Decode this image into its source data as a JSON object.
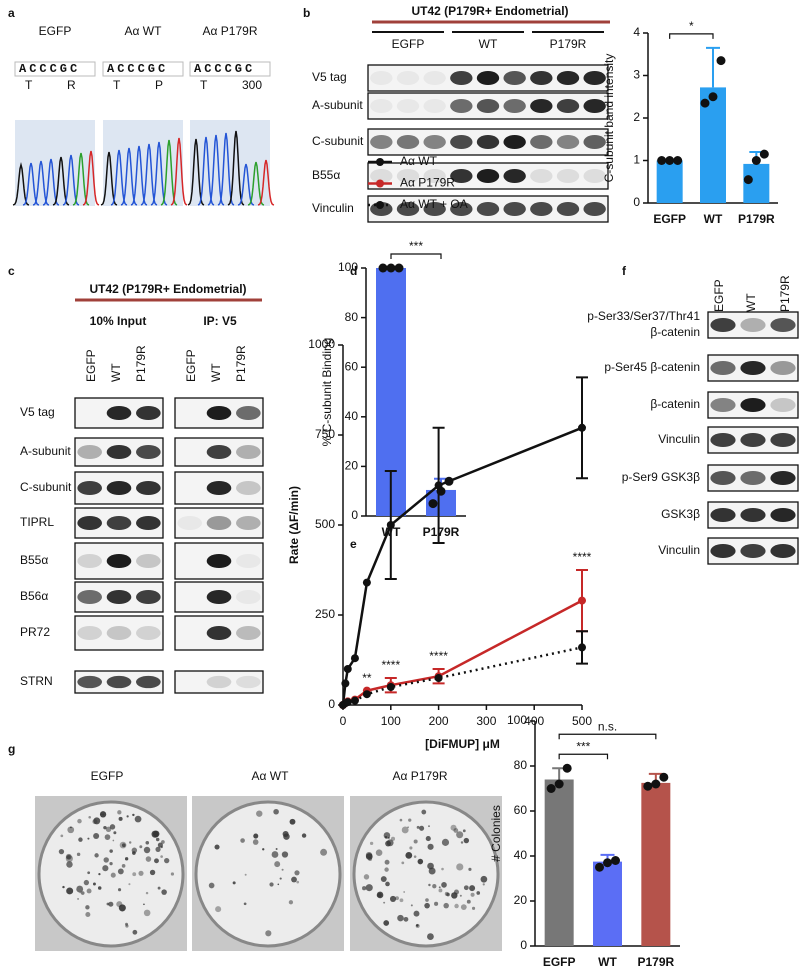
{
  "figure": {
    "panel_labels": [
      "a",
      "b",
      "c",
      "d",
      "e",
      "f",
      "g"
    ],
    "a": {
      "samples": [
        {
          "label": "EGFP",
          "sequence": "ACCCGC",
          "codons": [
            "T",
            "R"
          ]
        },
        {
          "label": "Aα WT",
          "sequence": "ACCCGC",
          "codons": [
            "T",
            "P"
          ]
        },
        {
          "label": "Aα P179R",
          "sequence": "ACCCGC",
          "codons": [
            "T",
            "300"
          ]
        }
      ]
    },
    "b": {
      "title": "UT42 (P179R+ Endometrial)",
      "groups": [
        "EGFP",
        "WT",
        "P179R"
      ],
      "rows": [
        "V5 tag",
        "A-subunit",
        "C-subunit",
        "B55α",
        "Vinculin"
      ]
    },
    "c": {
      "title": "UT42 (P179R+ Endometrial)",
      "sections": [
        "10% Input",
        "IP: V5"
      ],
      "lanes": [
        "EGFP",
        "WT",
        "P179R"
      ],
      "rows": [
        "V5 tag",
        "A-subunit",
        "C-subunit",
        "TIPRL",
        "B55α",
        "B56α",
        "PR72",
        "STRN"
      ]
    },
    "f": {
      "lanes": [
        "EGFP",
        "WT",
        "P179R"
      ],
      "rows": [
        [
          "p-Ser33/Ser37/Thr41",
          "β-catenin"
        ],
        [
          "p-Ser45 β-catenin"
        ],
        [
          "β-catenin"
        ],
        [
          "Vinculin"
        ],
        [
          "p-Ser9 GSK3β"
        ],
        [
          "GSK3β"
        ],
        [
          "Vinculin"
        ]
      ]
    },
    "g": {
      "plates": [
        "EGFP",
        "Aα WT",
        "Aα P179R"
      ]
    }
  },
  "chart_data": [
    {
      "type": "bar",
      "ylabel": "C-subunit band intensity",
      "categories": [
        "EGFP",
        "WT",
        "P179R"
      ],
      "values": [
        1,
        2.72,
        0.92
      ],
      "errors": [
        0,
        0.93,
        0.28
      ],
      "points": [
        [
          1,
          1,
          1
        ],
        [
          2.35,
          2.5,
          3.35
        ],
        [
          0.55,
          1.0,
          1.15
        ]
      ],
      "color": "#2a9ff0",
      "ylim": [
        0,
        4
      ],
      "yticks": [
        0,
        1,
        2,
        3,
        4
      ],
      "significance": [
        {
          "label": "*",
          "between": [
            "EGFP",
            "WT"
          ]
        }
      ]
    },
    {
      "type": "bar",
      "ylabel": "% C-subunit Binding",
      "categories": [
        "WT",
        "P179R"
      ],
      "values": [
        100,
        10.5
      ],
      "errors": [
        0,
        4.5
      ],
      "points": [
        [
          100,
          100,
          100
        ],
        [
          5,
          10,
          14
        ]
      ],
      "color": "#4f6ff0",
      "ylim": [
        0,
        100
      ],
      "yticks": [
        0,
        20,
        40,
        60,
        80,
        100
      ],
      "significance": [
        {
          "label": "***",
          "between": [
            "WT",
            "P179R"
          ]
        }
      ]
    },
    {
      "type": "line",
      "xlabel": "[DiFMUP] μM",
      "ylabel": "Rate (ΔF/min)",
      "x": [
        0,
        5,
        10,
        25,
        50,
        100,
        200,
        500
      ],
      "xlim": [
        0,
        500
      ],
      "xticks": [
        0,
        100,
        200,
        300,
        400,
        500
      ],
      "ylim": [
        0,
        1000
      ],
      "yticks": [
        0,
        250,
        500,
        750,
        1000
      ],
      "legend": "top-left",
      "series": [
        {
          "name": "Aα WT",
          "color": "#111111",
          "values": [
            0,
            60,
            100,
            130,
            340,
            500,
            610,
            770
          ],
          "errors": [
            null,
            null,
            null,
            null,
            null,
            150,
            160,
            140
          ]
        },
        {
          "name": "Aα P179R",
          "color": "#c62828",
          "values": [
            0,
            5,
            10,
            15,
            40,
            55,
            80,
            290
          ],
          "errors": [
            null,
            null,
            null,
            null,
            null,
            20,
            20,
            85
          ]
        },
        {
          "name": "Aα WT + OA",
          "color": "#111111",
          "dash": "dotted",
          "values": [
            0,
            5,
            8,
            12,
            30,
            50,
            75,
            160
          ],
          "errors": [
            null,
            null,
            null,
            null,
            null,
            null,
            null,
            45
          ]
        }
      ],
      "annotations": [
        {
          "label": "**",
          "x": 50
        },
        {
          "label": "****",
          "x": 100
        },
        {
          "label": "****",
          "x": 200
        },
        {
          "label": "****",
          "x": 500
        }
      ]
    },
    {
      "type": "bar",
      "ylabel": "# Colonies",
      "categories": [
        "EGFP",
        "WT",
        "P179R"
      ],
      "values": [
        74,
        37.5,
        72.5
      ],
      "errors": [
        5,
        3,
        4
      ],
      "points": [
        [
          70,
          72,
          79
        ],
        [
          35,
          37,
          38
        ],
        [
          71,
          72,
          75
        ]
      ],
      "colors": [
        "#777777",
        "#5b6ef5",
        "#b5534b"
      ],
      "ylim": [
        0,
        100
      ],
      "yticks": [
        0,
        20,
        40,
        60,
        80,
        100
      ],
      "significance": [
        {
          "label": "***",
          "between": [
            "EGFP",
            "WT"
          ]
        },
        {
          "label": "n.s.",
          "between": [
            "EGFP",
            "P179R"
          ]
        }
      ]
    }
  ]
}
